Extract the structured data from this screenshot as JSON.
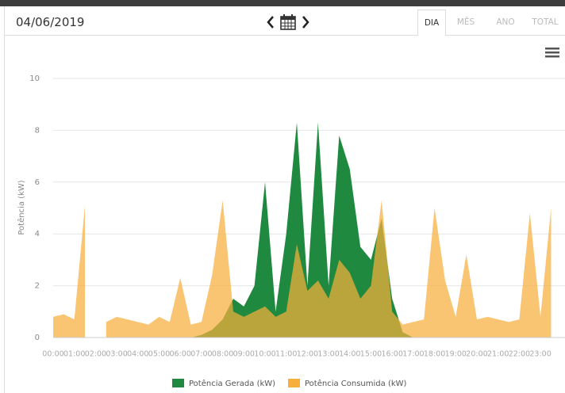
{
  "header": {
    "date": "04/06/2019",
    "tabs": [
      "DIA",
      "MÊS",
      "ANO",
      "TOTAL"
    ]
  },
  "chart_data": {
    "type": "area",
    "ylabel": "Potência (kW)",
    "categories": [
      "00:00",
      null,
      "01:00",
      null,
      "02:00",
      null,
      "03:00",
      null,
      "04:00",
      null,
      "05:00",
      null,
      "06:00",
      null,
      "07:00",
      null,
      "08:00",
      null,
      "09:00",
      null,
      "10:00",
      null,
      "11:00",
      null,
      "12:00",
      null,
      "13:00",
      null,
      "14:00",
      null,
      "15:00",
      null,
      "16:00",
      null,
      "17:00",
      null,
      "18:00",
      null,
      "19:00",
      null,
      "20:00",
      null,
      "21:00",
      null,
      "22:00",
      null,
      "23:00",
      null
    ],
    "series": [
      {
        "name": "Potência Gerada (kW)",
        "color": "#1f8a3f",
        "values": [
          0,
          0,
          0,
          0,
          0,
          0,
          0,
          0,
          0,
          0,
          0,
          0,
          0,
          0,
          0.1,
          0.3,
          0.7,
          1.5,
          1.2,
          2.0,
          6.0,
          1.0,
          4.0,
          8.3,
          2.0,
          8.3,
          2.0,
          7.8,
          6.5,
          3.5,
          3.0,
          4.6,
          1.5,
          0.2,
          0,
          0,
          0,
          0,
          0,
          0,
          0,
          0,
          0,
          0,
          0,
          0,
          0,
          0
        ]
      },
      {
        "name": "Potência Consumida (kW)",
        "color": "#f7ae3b",
        "values": [
          0.8,
          0.9,
          0.7,
          5.1,
          null,
          0.6,
          0.8,
          0.7,
          0.6,
          0.5,
          0.8,
          0.6,
          2.3,
          0.5,
          0.6,
          2.4,
          5.3,
          1.0,
          0.8,
          1.0,
          1.2,
          0.8,
          1.0,
          3.6,
          1.8,
          2.2,
          1.5,
          3.0,
          2.5,
          1.5,
          2.0,
          5.3,
          1.0,
          0.5,
          0.6,
          0.7,
          5.0,
          2.2,
          0.8,
          3.2,
          0.7,
          0.8,
          0.7,
          0.6,
          0.7,
          4.8,
          0.8,
          5.0
        ]
      }
    ],
    "ylim": [
      0,
      10
    ],
    "yticks": [
      0,
      2,
      4,
      6,
      8,
      10
    ],
    "grid": true,
    "legend": "bottom"
  }
}
